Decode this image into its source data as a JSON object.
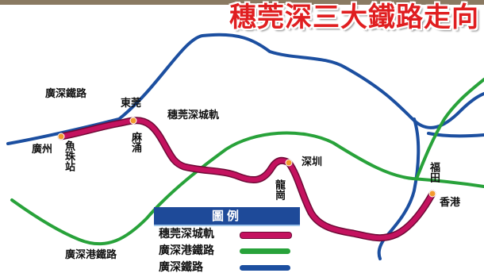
{
  "title": "穗莞深三大鐵路走向",
  "colors": {
    "suiguan_shen": "#c4125f",
    "suiguan_shen_edge": "#6e0a36",
    "guang_shen_gang": "#28a23a",
    "guang_shen": "#1c4fa0",
    "station": "#f29a2e",
    "title": "#e01e20",
    "legend_header": "#1e4a99"
  },
  "lines": {
    "guang_shen_label": "廣深鐵路",
    "guang_shen_gang_label": "廣深港鐵路",
    "suiguan_shen_label": "穗莞深城軌"
  },
  "stations": {
    "guangzhou": "廣州",
    "yuzhu": "魚珠站",
    "dongguan": "東莞",
    "machong": "麻涌",
    "shenzhen": "深圳",
    "longgang": "龍崗",
    "futian": "福田",
    "hongkong": "香港"
  },
  "legend": {
    "title": "圖例",
    "items": [
      {
        "label": "穗莞深城軌",
        "color": "#c4125f"
      },
      {
        "label": "廣深港鐵路",
        "color": "#28a23a"
      },
      {
        "label": "廣深鐵路",
        "color": "#1c4fa0"
      }
    ]
  },
  "icons": {
    "station_marker": "orange-dot-icon"
  }
}
